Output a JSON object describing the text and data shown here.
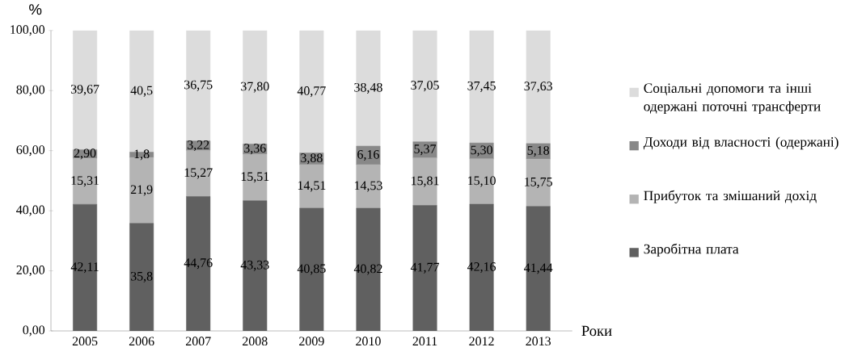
{
  "chart_data": {
    "type": "bar",
    "stacked": true,
    "xlabel": "Роки",
    "ylabel": "%",
    "categories": [
      "2005",
      "2006",
      "2007",
      "2008",
      "2009",
      "2010",
      "2011",
      "2012",
      "2013"
    ],
    "series": [
      {
        "name": "Заробітна плата",
        "color": "#606060",
        "values": [
          42.11,
          35.8,
          44.76,
          43.33,
          40.85,
          40.82,
          41.77,
          42.16,
          41.44
        ],
        "value_labels": [
          "42,11",
          "35,8",
          "44,76",
          "43,33",
          "40,85",
          "40,82",
          "41,77",
          "42,16",
          "41,44"
        ]
      },
      {
        "name": "Прибуток та змішаний дохід",
        "color": "#b4b4b4",
        "values": [
          15.31,
          21.9,
          15.27,
          15.51,
          14.51,
          14.53,
          15.81,
          15.1,
          15.75
        ],
        "value_labels": [
          "15,31",
          "21,9",
          "15,27",
          "15,51",
          "14,51",
          "14,53",
          "15,81",
          "15,10",
          "15,75"
        ]
      },
      {
        "name": "Доходи від власності (одержані)",
        "color": "#888888",
        "values": [
          2.9,
          1.8,
          3.22,
          3.36,
          3.88,
          6.16,
          5.37,
          5.3,
          5.18
        ],
        "value_labels": [
          "2,90",
          "1,8",
          "3,22",
          "3,36",
          "3,88",
          "6,16",
          "5,37",
          "5,30",
          "5,18"
        ]
      },
      {
        "name": "Соціальні допомоги та інші одержані поточні трансферти",
        "color": "#dcdcdc",
        "values": [
          39.67,
          40.5,
          36.75,
          37.8,
          40.77,
          38.48,
          37.05,
          37.45,
          37.63
        ],
        "value_labels": [
          "39,67",
          "40,5",
          "36,75",
          "37,80",
          "40,77",
          "38,48",
          "37,05",
          "37,45",
          "37,63"
        ]
      }
    ],
    "ylim": [
      0,
      100
    ],
    "yticks": [
      {
        "value": 0,
        "label": "0,00"
      },
      {
        "value": 20,
        "label": "20,00"
      },
      {
        "value": 40,
        "label": "40,00"
      },
      {
        "value": 60,
        "label": "60,00"
      },
      {
        "value": 80,
        "label": "80,00"
      },
      {
        "value": 100,
        "label": "100,00"
      }
    ],
    "legend": "right"
  }
}
